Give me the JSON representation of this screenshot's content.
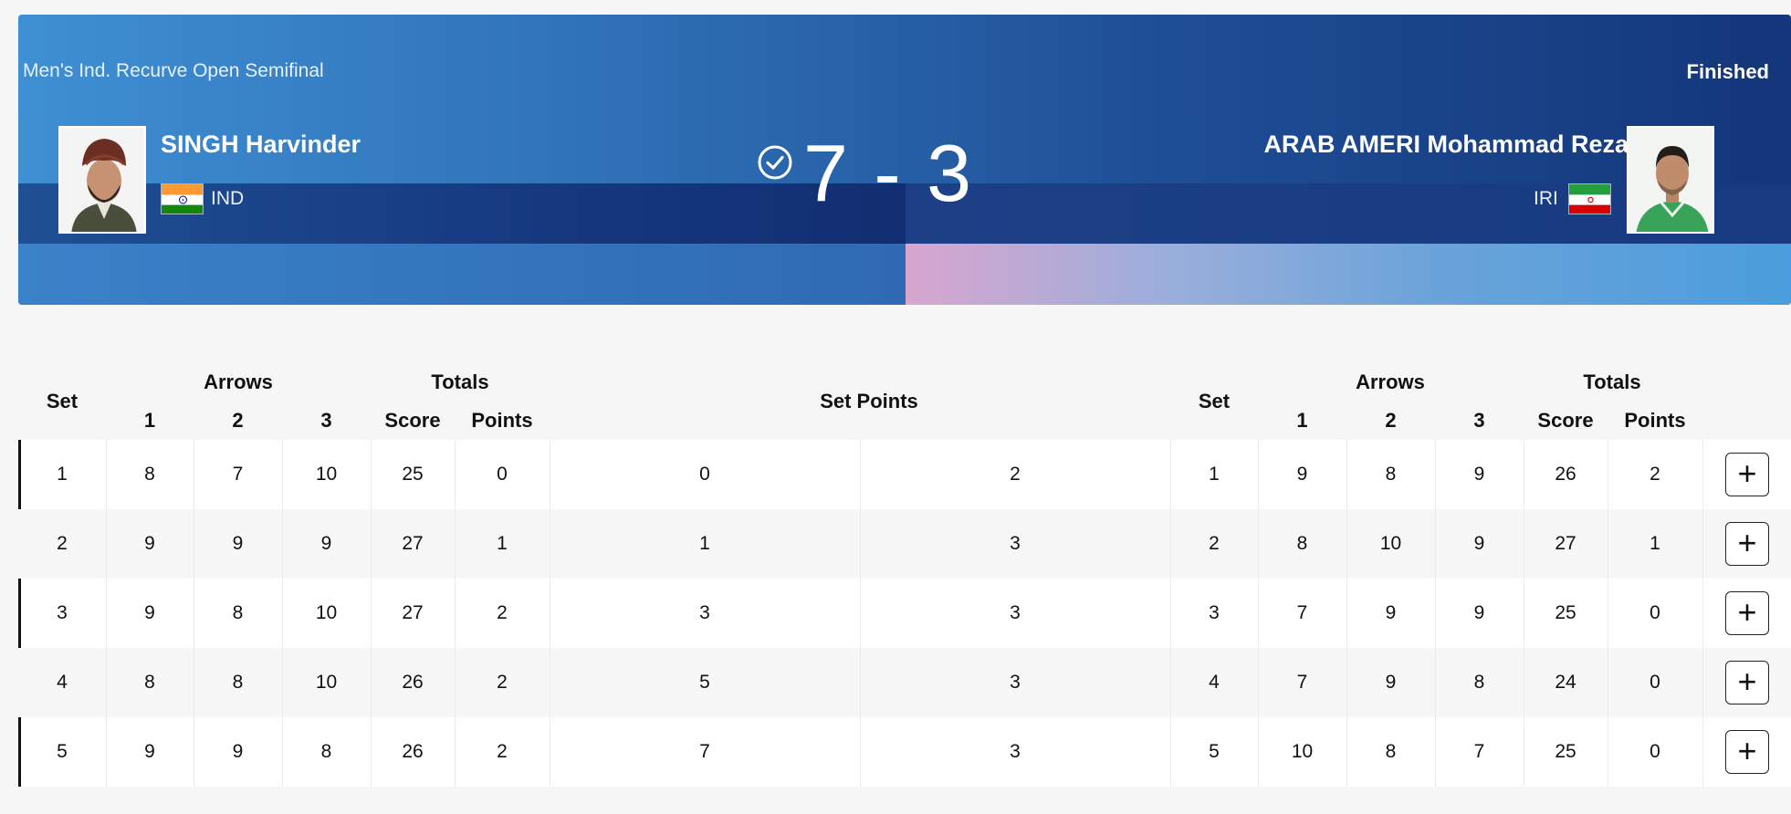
{
  "event": {
    "title": "Men's Ind. Recurve Open Semifinal",
    "status": "Finished"
  },
  "athletes": {
    "left": {
      "name": "SINGH Harvinder",
      "noc": "IND",
      "flag_icon": "india-flag-icon"
    },
    "right": {
      "name": "ARAB AMERI Mohammad Reza",
      "noc": "IRI",
      "flag_icon": "iran-flag-icon"
    }
  },
  "score": {
    "display": "7 - 3",
    "left": 7,
    "right": 3,
    "winner_icon": "check-circle-icon"
  },
  "colors": {
    "banner_start": "#3f8fd3",
    "banner_end": "#14367a",
    "accent": "#111111"
  },
  "table": {
    "headers": {
      "set": "Set",
      "arrows": "Arrows",
      "totals": "Totals",
      "arrow1": "1",
      "arrow2": "2",
      "arrow3": "3",
      "score": "Score",
      "points": "Points",
      "set_points": "Set Points"
    },
    "expand_label": "+",
    "rows": [
      {
        "set": "1",
        "l_a1": "8",
        "l_a2": "7",
        "l_a3": "10",
        "l_score": "25",
        "l_points": "0",
        "sp_left": "0",
        "sp_right": "2",
        "r_set": "1",
        "r_a1": "9",
        "r_a2": "8",
        "r_a3": "9",
        "r_score": "26",
        "r_points": "2"
      },
      {
        "set": "2",
        "l_a1": "9",
        "l_a2": "9",
        "l_a3": "9",
        "l_score": "27",
        "l_points": "1",
        "sp_left": "1",
        "sp_right": "3",
        "r_set": "2",
        "r_a1": "8",
        "r_a2": "10",
        "r_a3": "9",
        "r_score": "27",
        "r_points": "1"
      },
      {
        "set": "3",
        "l_a1": "9",
        "l_a2": "8",
        "l_a3": "10",
        "l_score": "27",
        "l_points": "2",
        "sp_left": "3",
        "sp_right": "3",
        "r_set": "3",
        "r_a1": "7",
        "r_a2": "9",
        "r_a3": "9",
        "r_score": "25",
        "r_points": "0"
      },
      {
        "set": "4",
        "l_a1": "8",
        "l_a2": "8",
        "l_a3": "10",
        "l_score": "26",
        "l_points": "2",
        "sp_left": "5",
        "sp_right": "3",
        "r_set": "4",
        "r_a1": "7",
        "r_a2": "9",
        "r_a3": "8",
        "r_score": "24",
        "r_points": "0"
      },
      {
        "set": "5",
        "l_a1": "9",
        "l_a2": "9",
        "l_a3": "8",
        "l_score": "26",
        "l_points": "2",
        "sp_left": "7",
        "sp_right": "3",
        "r_set": "5",
        "r_a1": "10",
        "r_a2": "8",
        "r_a3": "7",
        "r_score": "25",
        "r_points": "0"
      }
    ]
  }
}
